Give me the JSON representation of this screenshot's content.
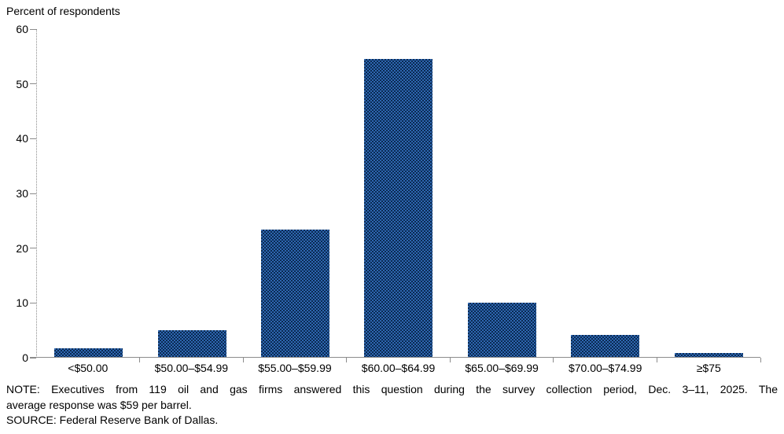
{
  "chart_data": {
    "type": "bar",
    "title": "",
    "ylabel": "Percent of respondents",
    "categories": [
      "<$50.00",
      "$50.00–$54.99",
      "$55.00–$59.99",
      "$60.00–$64.99",
      "$65.00–$69.99",
      "$70.00–$74.99",
      "≥$75"
    ],
    "values": [
      1.7,
      5.0,
      23.4,
      54.6,
      10.1,
      4.2,
      0.8
    ],
    "ylim": [
      0,
      60
    ],
    "yticks": [
      0,
      10,
      20,
      30,
      40,
      50,
      60
    ],
    "bar_color": "#1c4881",
    "axis_color": "#8c8c8c",
    "grid": false,
    "legend_position": "none"
  },
  "notes": {
    "note_line_1": "NOTE: Executives from 119 oil and gas firms answered this question during the survey collection period, Dec. 3–11, 2025. The",
    "note_line_2": "average response was $59 per barrel.",
    "source_line": "SOURCE: Federal Reserve Bank of Dallas."
  }
}
